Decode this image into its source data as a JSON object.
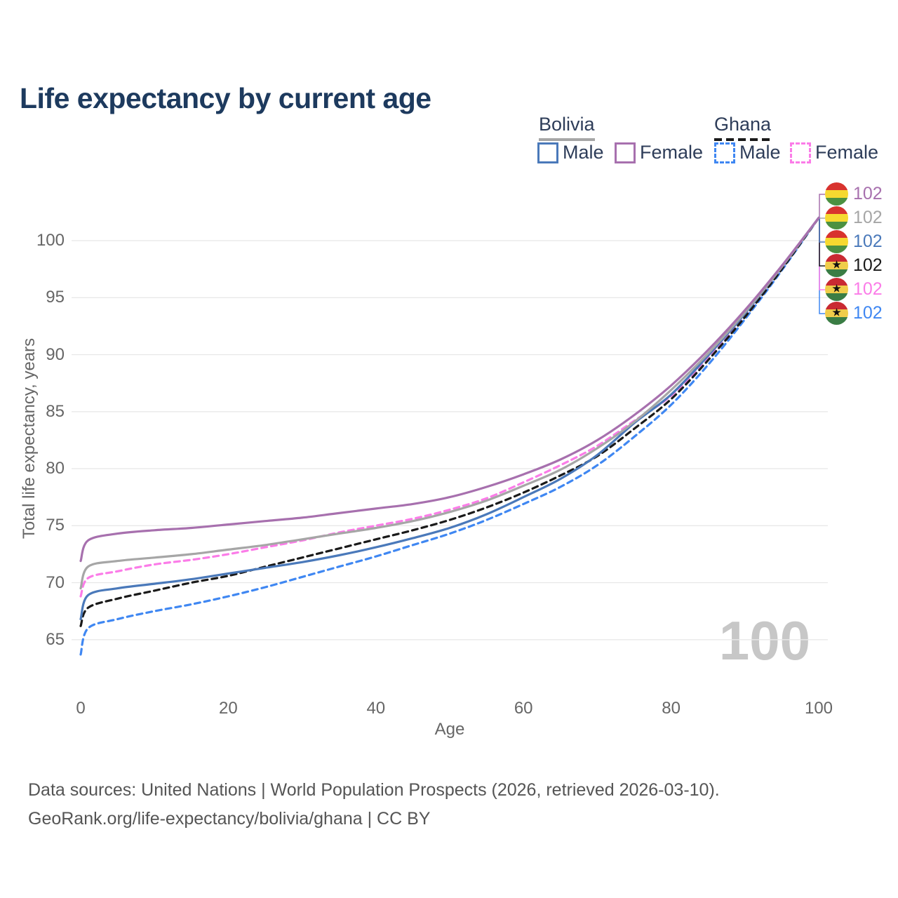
{
  "title": "Life expectancy by current age",
  "legend": {
    "bolivia": {
      "label": "Bolivia",
      "male": "Male",
      "female": "Female"
    },
    "ghana": {
      "label": "Ghana",
      "male": "Male",
      "female": "Female"
    }
  },
  "watermark": "100",
  "footer": {
    "line1": "Data sources: United Nations | World Population Prospects (2026, retrieved 2026-03-10).",
    "line2": "GeoRank.org/life-expectancy/bolivia/ghana | CC BY"
  },
  "chart_data": {
    "type": "line",
    "title": "Life expectancy by current age",
    "xlabel": "Age",
    "ylabel": "Total life expectancy, years",
    "xlim": [
      0,
      100
    ],
    "ylim": [
      63,
      103
    ],
    "x_ticks": [
      0,
      20,
      40,
      60,
      80,
      100
    ],
    "y_ticks": [
      65,
      70,
      75,
      80,
      85,
      90,
      95,
      100
    ],
    "grid": "horizontal",
    "legend_position": "top-right",
    "x": [
      0,
      1,
      5,
      10,
      15,
      20,
      25,
      30,
      35,
      40,
      45,
      50,
      55,
      60,
      65,
      70,
      75,
      80,
      85,
      90,
      95,
      100
    ],
    "series": [
      {
        "key": "bolivia_female",
        "name": "Bolivia Female",
        "country": "Bolivia",
        "sex": "Female",
        "color": "#a770ae",
        "dash": "solid",
        "flag": "bolivia",
        "end_label": "102",
        "values": [
          71.9,
          73.7,
          74.3,
          74.6,
          74.8,
          75.1,
          75.4,
          75.7,
          76.1,
          76.5,
          76.9,
          77.5,
          78.4,
          79.5,
          80.8,
          82.5,
          84.7,
          87.3,
          90.4,
          93.9,
          97.8,
          102
        ]
      },
      {
        "key": "bolivia_both",
        "name": "Bolivia",
        "country": "Bolivia",
        "sex": "Both",
        "color": "#a6a6a6",
        "dash": "solid",
        "flag": "bolivia",
        "end_label": "102",
        "values": [
          69.5,
          71.4,
          71.9,
          72.2,
          72.5,
          72.9,
          73.3,
          73.8,
          74.3,
          74.8,
          75.4,
          76.2,
          77.2,
          78.5,
          79.9,
          81.8,
          84.1,
          86.9,
          90.1,
          93.7,
          97.7,
          102
        ]
      },
      {
        "key": "bolivia_male",
        "name": "Bolivia Male",
        "country": "Bolivia",
        "sex": "Male",
        "color": "#4a79ba",
        "dash": "solid",
        "flag": "bolivia",
        "end_label": "102",
        "values": [
          66.8,
          68.9,
          69.5,
          69.9,
          70.3,
          70.8,
          71.3,
          71.8,
          72.4,
          73.1,
          73.9,
          74.8,
          76.0,
          77.5,
          79.1,
          81.2,
          84.0,
          86.5,
          89.9,
          93.6,
          97.7,
          102
        ]
      },
      {
        "key": "ghana_both",
        "name": "Ghana",
        "country": "Ghana",
        "sex": "Both",
        "color": "#1a1a1a",
        "dash": "dashed",
        "flag": "ghana",
        "end_label": "102",
        "values": [
          66.2,
          67.8,
          68.6,
          69.3,
          70.0,
          70.6,
          71.4,
          72.2,
          73.0,
          73.8,
          74.6,
          75.5,
          76.6,
          77.9,
          79.4,
          81.1,
          83.5,
          86.1,
          89.5,
          93.3,
          97.5,
          102
        ]
      },
      {
        "key": "ghana_female",
        "name": "Ghana Female",
        "country": "Ghana",
        "sex": "Female",
        "color": "#fb7ce8",
        "dash": "dashed",
        "flag": "ghana",
        "end_label": "102",
        "values": [
          68.8,
          70.4,
          71.0,
          71.6,
          72.0,
          72.5,
          73.1,
          73.7,
          74.4,
          75.0,
          75.6,
          76.4,
          77.4,
          78.8,
          80.3,
          82.0,
          84.2,
          86.4,
          89.8,
          93.5,
          97.6,
          102
        ]
      },
      {
        "key": "ghana_male",
        "name": "Ghana Male",
        "country": "Ghana",
        "sex": "Male",
        "color": "#3f87f2",
        "dash": "dashed",
        "flag": "ghana",
        "end_label": "102",
        "values": [
          63.7,
          66.0,
          66.8,
          67.5,
          68.1,
          68.8,
          69.6,
          70.5,
          71.4,
          72.3,
          73.3,
          74.3,
          75.5,
          76.9,
          78.4,
          80.3,
          82.8,
          85.6,
          89.1,
          93.1,
          97.4,
          102
        ]
      }
    ]
  }
}
